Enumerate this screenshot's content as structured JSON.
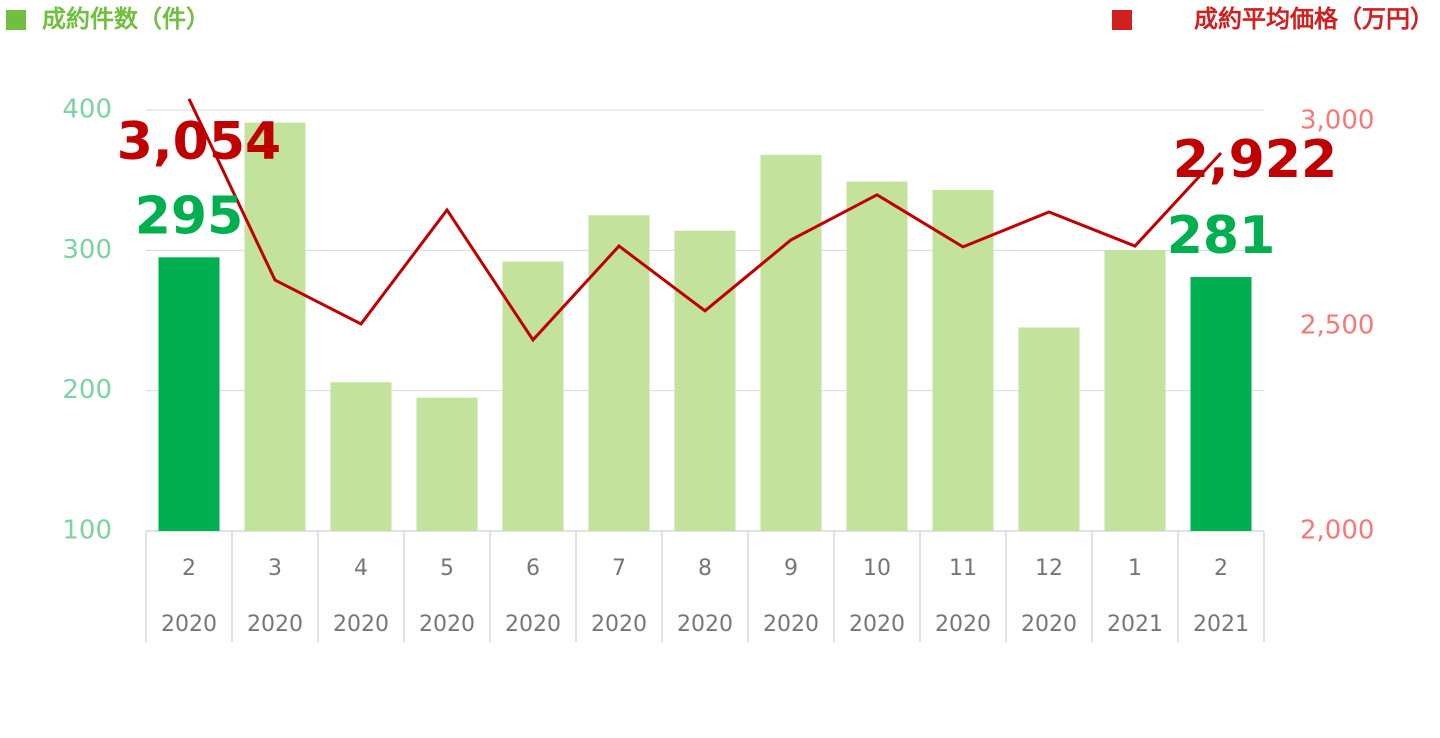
{
  "chart_data": {
    "type": "bar-line",
    "categories": [
      [
        "2",
        "2020"
      ],
      [
        "3",
        "2020"
      ],
      [
        "4",
        "2020"
      ],
      [
        "5",
        "2020"
      ],
      [
        "6",
        "2020"
      ],
      [
        "7",
        "2020"
      ],
      [
        "8",
        "2020"
      ],
      [
        "9",
        "2020"
      ],
      [
        "10",
        "2020"
      ],
      [
        "11",
        "2020"
      ],
      [
        "12",
        "2020"
      ],
      [
        "1",
        "2021"
      ],
      [
        "2",
        "2021"
      ]
    ],
    "series": [
      {
        "name": "成約件数（件）",
        "type": "bar",
        "color": "#70bf40",
        "colors": [
          "#00b050",
          "#c3e29c",
          "#c3e29c",
          "#c3e29c",
          "#c3e29c",
          "#c3e29c",
          "#c3e29c",
          "#c3e29c",
          "#c3e29c",
          "#c3e29c",
          "#c3e29c",
          "#c3e29c",
          "#00b050"
        ],
        "label_color": "#00b050",
        "values": [
          295,
          391,
          206,
          195,
          292,
          325,
          314,
          368,
          349,
          343,
          245,
          300,
          281
        ],
        "value_labels": [
          "295",
          null,
          null,
          null,
          null,
          null,
          null,
          null,
          null,
          null,
          null,
          null,
          "281"
        ]
      },
      {
        "name": "成約平均価格（万円）",
        "type": "line",
        "axis": "y2",
        "color": "#c00000",
        "legend_color": "#d02020",
        "label_color": "#c00000",
        "values": [
          3054,
          2612,
          2505,
          2783,
          2466,
          2695,
          2537,
          2710,
          2820,
          2693,
          2778,
          2695,
          2922
        ],
        "value_labels": [
          "3,054",
          null,
          null,
          null,
          null,
          null,
          null,
          null,
          null,
          null,
          null,
          null,
          "2,922"
        ]
      }
    ],
    "ylim": [
      100,
      400
    ],
    "yticks": [
      100,
      200,
      300,
      400
    ],
    "y2lim": [
      2000,
      3000
    ],
    "y2ticks": [
      {
        "value": 2000,
        "label": "2,000"
      },
      {
        "value": 2500,
        "label": "2,500"
      },
      {
        "value": 3000,
        "label": "3,000"
      }
    ],
    "ytick_color": "#7dd3a0",
    "y2tick_color": "#f47a7a",
    "grid": true
  }
}
